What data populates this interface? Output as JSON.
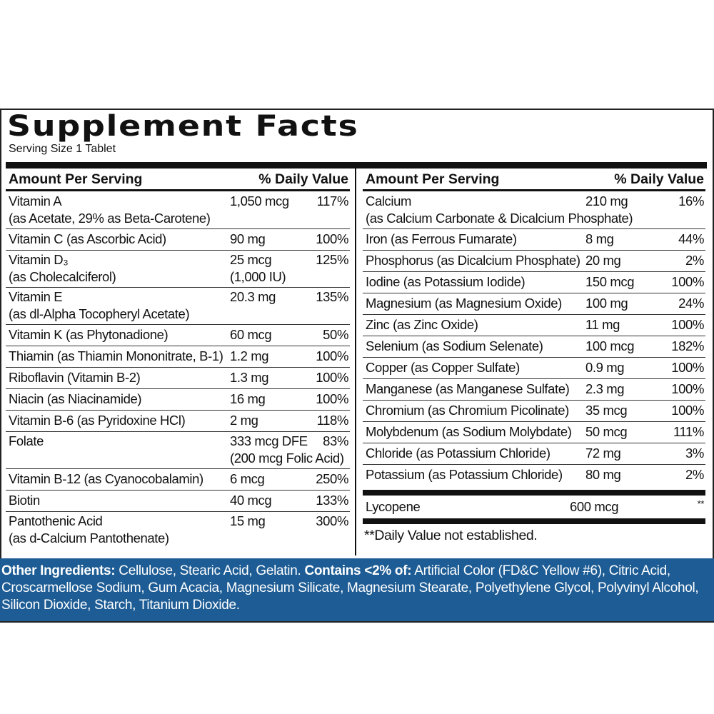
{
  "header": {
    "title": "Supplement Facts",
    "serving_size": "Serving Size 1 Tablet"
  },
  "left": {
    "columns": [
      "Amount Per Serving",
      "% Daily Value"
    ],
    "rows": [
      {
        "name": [
          "Vitamin A",
          "(as Acetate, 29% as Beta-Carotene)"
        ],
        "amount": [
          "1,050 mcg"
        ],
        "dv": "117%"
      },
      {
        "name": [
          "Vitamin C (as Ascorbic Acid)"
        ],
        "amount": [
          "90 mg"
        ],
        "dv": "100%"
      },
      {
        "name": [
          "Vitamin D₃",
          "(as Cholecalciferol)"
        ],
        "amount": [
          "25 mcg",
          "(1,000 IU)"
        ],
        "dv": "125%"
      },
      {
        "name": [
          "Vitamin E",
          "(as dl-Alpha Tocopheryl Acetate)"
        ],
        "amount": [
          "20.3 mg"
        ],
        "dv": "135%"
      },
      {
        "name": [
          "Vitamin K (as Phytonadione)"
        ],
        "amount": [
          "60 mcg"
        ],
        "dv": "50%"
      },
      {
        "name": [
          "Thiamin (as Thiamin Mononitrate, B-1)"
        ],
        "amount": [
          "1.2 mg"
        ],
        "dv": "100%"
      },
      {
        "name": [
          "Riboflavin (Vitamin B-2)"
        ],
        "amount": [
          "1.3 mg"
        ],
        "dv": "100%"
      },
      {
        "name": [
          "Niacin (as Niacinamide)"
        ],
        "amount": [
          "16 mg"
        ],
        "dv": "100%"
      },
      {
        "name": [
          "Vitamin B-6 (as Pyridoxine HCl)"
        ],
        "amount": [
          "2 mg"
        ],
        "dv": "118%"
      },
      {
        "name": [
          "Folate"
        ],
        "amount": [
          "333 mcg DFE",
          "(200 mcg Folic Acid)"
        ],
        "dv": "83%"
      },
      {
        "name": [
          "Vitamin B-12 (as Cyanocobalamin)"
        ],
        "amount": [
          "6 mcg"
        ],
        "dv": "250%"
      },
      {
        "name": [
          "Biotin"
        ],
        "amount": [
          "40 mcg"
        ],
        "dv": "133%"
      },
      {
        "name": [
          "Pantothenic Acid",
          "(as d-Calcium Pantothenate)"
        ],
        "amount": [
          "15 mg"
        ],
        "dv": "300%"
      }
    ]
  },
  "right": {
    "columns": [
      "Amount Per Serving",
      "% Daily Value"
    ],
    "rows": [
      {
        "name": [
          "Calcium",
          "(as Calcium Carbonate & Dicalcium Phosphate)"
        ],
        "amount": [
          "210 mg"
        ],
        "dv": "16%"
      },
      {
        "name": [
          "Iron (as Ferrous Fumarate)"
        ],
        "amount": [
          "8 mg"
        ],
        "dv": "44%"
      },
      {
        "name": [
          "Phosphorus (as Dicalcium Phosphate)"
        ],
        "amount": [
          "20 mg"
        ],
        "dv": "2%"
      },
      {
        "name": [
          "Iodine (as Potassium Iodide)"
        ],
        "amount": [
          "150 mcg"
        ],
        "dv": "100%"
      },
      {
        "name": [
          "Magnesium (as Magnesium Oxide)"
        ],
        "amount": [
          "100 mg"
        ],
        "dv": "24%"
      },
      {
        "name": [
          "Zinc (as Zinc Oxide)"
        ],
        "amount": [
          "11 mg"
        ],
        "dv": "100%"
      },
      {
        "name": [
          "Selenium (as Sodium Selenate)"
        ],
        "amount": [
          "100 mcg"
        ],
        "dv": "182%"
      },
      {
        "name": [
          "Copper (as Copper Sulfate)"
        ],
        "amount": [
          "0.9 mg"
        ],
        "dv": "100%"
      },
      {
        "name": [
          "Manganese (as Manganese Sulfate)"
        ],
        "amount": [
          "2.3 mg"
        ],
        "dv": "100%"
      },
      {
        "name": [
          "Chromium (as Chromium Picolinate)"
        ],
        "amount": [
          "35 mcg"
        ],
        "dv": "100%"
      },
      {
        "name": [
          "Molybdenum (as Sodium Molybdate)"
        ],
        "amount": [
          "50 mcg"
        ],
        "dv": "111%"
      },
      {
        "name": [
          "Chloride (as Potassium Chloride)"
        ],
        "amount": [
          "72 mg"
        ],
        "dv": "3%"
      },
      {
        "name": [
          "Potassium (as Potassium Chloride)"
        ],
        "amount": [
          "80 mg"
        ],
        "dv": "2%"
      }
    ]
  },
  "lycopene": {
    "name": "Lycopene",
    "amount": "600 mcg",
    "dv": "**"
  },
  "note": "**Daily Value not established.",
  "footer": {
    "label1": "Other Ingredients:",
    "text1": " Cellulose, Stearic Acid, Gelatin. ",
    "label2": "Contains <2% of:",
    "text2": " Artificial Color (FD&C Yellow #6), Citric Acid, Croscarmellose Sodium, Gum Acacia, Magnesium Silicate, Magnesium Stearate, Polyethylene Glycol, Polyvinyl Alcohol, Silicon Dioxide, Starch, Titanium Dioxide."
  }
}
